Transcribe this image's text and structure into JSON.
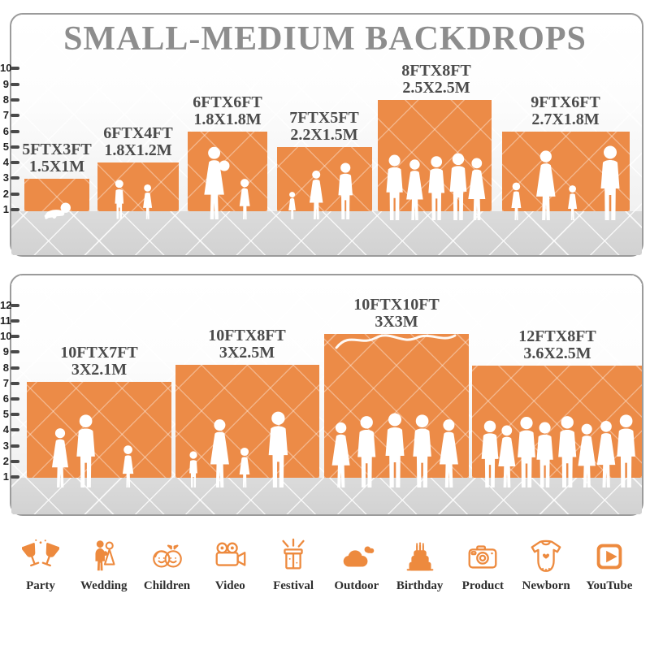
{
  "title": "SMALL-MEDIUM BACKDROPS",
  "colors": {
    "accent_orange": "#EC8B47",
    "icon_orange": "#ED8A3E",
    "title_gray": "#8D8D8D",
    "label_dark": "#4B4B4B",
    "floor_gray": "#D8D8D8",
    "tick_dark": "#4A4A4A"
  },
  "panel_top": {
    "ruler_max": 10,
    "blocks": [
      {
        "ft": "5FTX3FT",
        "m": "1.5X1M"
      },
      {
        "ft": "6FTX4FT",
        "m": "1.8X1.2M"
      },
      {
        "ft": "6FTX6FT",
        "m": "1.8X1.8M"
      },
      {
        "ft": "7FTX5FT",
        "m": "2.2X1.5M"
      },
      {
        "ft": "8FTX8FT",
        "m": "2.5X2.5M"
      },
      {
        "ft": "9FTX6FT",
        "m": "2.7X1.8M"
      }
    ]
  },
  "panel_bottom": {
    "ruler_max": 12,
    "blocks": [
      {
        "ft": "10FTX7FT",
        "m": "3X2.1M"
      },
      {
        "ft": "10FTX8FT",
        "m": "3X2.5M"
      },
      {
        "ft": "10FTX10FT",
        "m": "3X3M"
      },
      {
        "ft": "12FTX8FT",
        "m": "3.6X2.5M"
      }
    ]
  },
  "categories": [
    {
      "label": "Party",
      "icon": "party-icon"
    },
    {
      "label": "Wedding",
      "icon": "wedding-icon"
    },
    {
      "label": "Children",
      "icon": "children-icon"
    },
    {
      "label": "Video",
      "icon": "video-icon"
    },
    {
      "label": "Festival",
      "icon": "festival-icon"
    },
    {
      "label": "Outdoor",
      "icon": "outdoor-icon"
    },
    {
      "label": "Birthday",
      "icon": "birthday-icon"
    },
    {
      "label": "Product",
      "icon": "product-icon"
    },
    {
      "label": "Newborn",
      "icon": "newborn-icon"
    },
    {
      "label": "YouTube",
      "icon": "youtube-icon"
    }
  ]
}
